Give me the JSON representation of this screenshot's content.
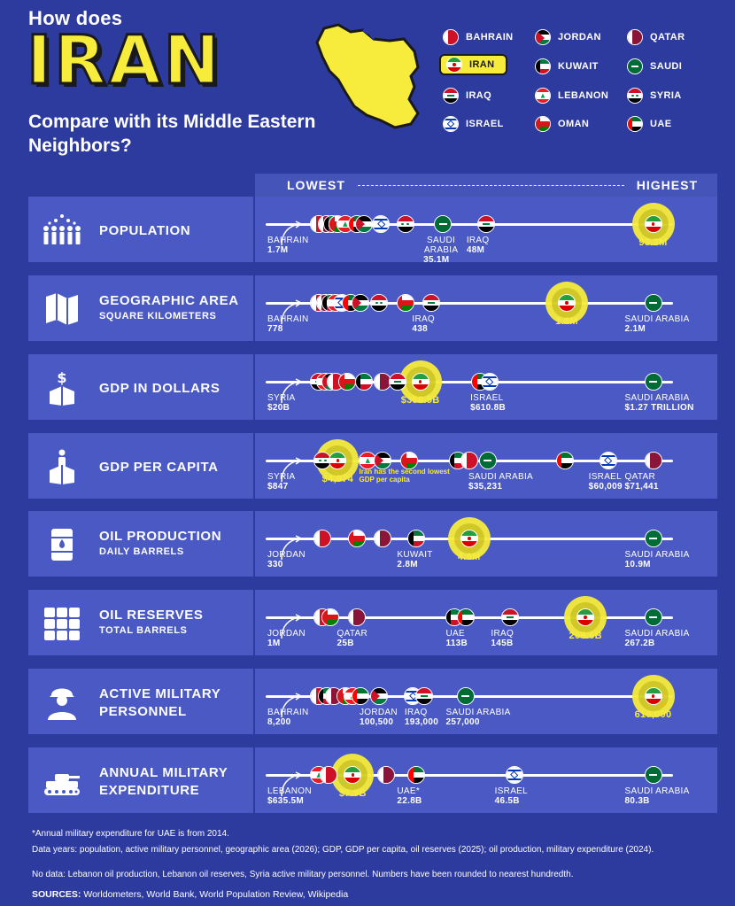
{
  "header": {
    "title_small": "How does",
    "title_big": "IRAN",
    "title_sub": "Compare with its Middle Eastern Neighbors?"
  },
  "legend": [
    {
      "name": "BAHRAIN",
      "flag": "bahrain"
    },
    {
      "name": "JORDAN",
      "flag": "jordan"
    },
    {
      "name": "QATAR",
      "flag": "qatar"
    },
    {
      "name": "IRAN",
      "flag": "iran",
      "highlight": true
    },
    {
      "name": "KUWAIT",
      "flag": "kuwait"
    },
    {
      "name": "SAUDI",
      "flag": "saudi"
    },
    {
      "name": "IRAQ",
      "flag": "iraq"
    },
    {
      "name": "LEBANON",
      "flag": "lebanon"
    },
    {
      "name": "SYRIA",
      "flag": "syria"
    },
    {
      "name": "ISRAEL",
      "flag": "israel"
    },
    {
      "name": "OMAN",
      "flag": "oman"
    },
    {
      "name": "UAE",
      "flag": "uae"
    }
  ],
  "scale": {
    "low": "LOWEST",
    "high": "HIGHEST"
  },
  "rows": [
    {
      "id": "population",
      "title": "POPULATION",
      "subtitle": "",
      "icon": "people-icon",
      "markers": [
        {
          "flag": "bahrain",
          "pos": 0.09
        },
        {
          "flag": "qatar",
          "pos": 0.11
        },
        {
          "flag": "kuwait",
          "pos": 0.125
        },
        {
          "flag": "oman",
          "pos": 0.14
        },
        {
          "flag": "lebanon",
          "pos": 0.16
        },
        {
          "flag": "uae",
          "pos": 0.19
        },
        {
          "flag": "jordan",
          "pos": 0.21
        },
        {
          "flag": "syria",
          "pos": 0.32
        },
        {
          "flag": "israel",
          "pos": 0.255
        },
        {
          "flag": "saudi",
          "pos": 0.42
        },
        {
          "flag": "iraq",
          "pos": 0.535
        },
        {
          "flag": "iran",
          "pos": 0.98,
          "iran": true
        }
      ],
      "labels": [
        {
          "name": "BAHRAIN",
          "value": "1.7M",
          "pos": 0.01
        },
        {
          "name": "SAUDI ARABIA",
          "value": "35.1M",
          "pos": 0.42,
          "two_line": true
        },
        {
          "name": "IRAQ",
          "value": "48M",
          "pos": 0.535
        },
        {
          "name": "",
          "value": "93.2M",
          "pos": 0.98,
          "iran": true
        }
      ]
    },
    {
      "id": "area",
      "title": "GEOGRAPHIC AREA",
      "subtitle": "SQUARE KILOMETERS",
      "icon": "map-icon",
      "markers": [
        {
          "flag": "bahrain",
          "pos": 0.09
        },
        {
          "flag": "qatar",
          "pos": 0.105
        },
        {
          "flag": "kuwait",
          "pos": 0.12
        },
        {
          "flag": "lebanon",
          "pos": 0.135
        },
        {
          "flag": "israel",
          "pos": 0.15
        },
        {
          "flag": "uae",
          "pos": 0.175
        },
        {
          "flag": "jordan",
          "pos": 0.2
        },
        {
          "flag": "syria",
          "pos": 0.25
        },
        {
          "flag": "oman",
          "pos": 0.32
        },
        {
          "flag": "iraq",
          "pos": 0.39
        },
        {
          "flag": "iran",
          "pos": 0.75,
          "iran": true
        },
        {
          "flag": "saudi",
          "pos": 0.98
        }
      ],
      "labels": [
        {
          "name": "BAHRAIN",
          "value": "778",
          "pos": 0.01
        },
        {
          "name": "IRAQ",
          "value": "438",
          "pos": 0.39
        },
        {
          "name": "",
          "value": "1.6M",
          "pos": 0.75,
          "iran": true
        },
        {
          "name": "SAUDI ARABIA",
          "value": "2.1M",
          "pos": 0.98
        }
      ]
    },
    {
      "id": "gdp",
      "title": "GDP IN DOLLARS",
      "subtitle": "",
      "icon": "money-box-icon",
      "markers": [
        {
          "flag": "syria",
          "pos": 0.09
        },
        {
          "flag": "lebanon",
          "pos": 0.105
        },
        {
          "flag": "jordan",
          "pos": 0.12
        },
        {
          "flag": "bahrain",
          "pos": 0.135
        },
        {
          "flag": "oman",
          "pos": 0.165
        },
        {
          "flag": "kuwait",
          "pos": 0.21
        },
        {
          "flag": "qatar",
          "pos": 0.26
        },
        {
          "flag": "iraq",
          "pos": 0.3
        },
        {
          "flag": "iran",
          "pos": 0.36,
          "iran": true
        },
        {
          "flag": "uae",
          "pos": 0.52
        },
        {
          "flag": "israel",
          "pos": 0.545
        },
        {
          "flag": "saudi",
          "pos": 0.98
        }
      ],
      "labels": [
        {
          "name": "SYRIA",
          "value": "$20B",
          "pos": 0.01
        },
        {
          "name": "",
          "value": "$356.5B",
          "pos": 0.36,
          "iran": true
        },
        {
          "name": "ISRAEL",
          "value": "$610.8B",
          "pos": 0.545
        },
        {
          "name": "SAUDI ARABIA",
          "value": "$1.27 TRILLION",
          "pos": 0.98
        }
      ]
    },
    {
      "id": "gdp_pc",
      "title": "GDP PER CAPITA",
      "subtitle": "",
      "icon": "person-box-icon",
      "markers": [
        {
          "flag": "syria",
          "pos": 0.1
        },
        {
          "flag": "iran",
          "pos": 0.14,
          "iran": true
        },
        {
          "flag": "lebanon",
          "pos": 0.22
        },
        {
          "flag": "jordan",
          "pos": 0.26
        },
        {
          "flag": "oman",
          "pos": 0.33
        },
        {
          "flag": "kuwait",
          "pos": 0.46
        },
        {
          "flag": "bahrain",
          "pos": 0.49
        },
        {
          "flag": "saudi",
          "pos": 0.54
        },
        {
          "flag": "uae",
          "pos": 0.745
        },
        {
          "flag": "israel",
          "pos": 0.86
        },
        {
          "flag": "qatar",
          "pos": 0.98
        }
      ],
      "labels": [
        {
          "name": "SYRIA",
          "value": "$847",
          "pos": 0.01
        },
        {
          "name": "",
          "value": "$4,074",
          "pos": 0.14,
          "iran": true
        },
        {
          "name": "SAUDI ARABIA",
          "value": "$35,231",
          "pos": 0.54
        },
        {
          "name": "ISRAEL",
          "value": "$60,009",
          "pos": 0.86
        },
        {
          "name": "QATAR",
          "value": "$71,441",
          "pos": 0.98
        }
      ],
      "note": "Iran has the second lowest GDP per capita"
    },
    {
      "id": "oil_prod",
      "title": "OIL PRODUCTION",
      "subtitle": "DAILY BARRELS",
      "icon": "barrel-icon",
      "markers": [
        {
          "flag": "bahrain",
          "pos": 0.1
        },
        {
          "flag": "oman",
          "pos": 0.19
        },
        {
          "flag": "qatar",
          "pos": 0.26
        },
        {
          "flag": "kuwait",
          "pos": 0.35
        },
        {
          "flag": "iran",
          "pos": 0.49,
          "iran": true
        },
        {
          "flag": "saudi",
          "pos": 0.98
        }
      ],
      "labels": [
        {
          "name": "JORDAN",
          "value": "330",
          "pos": 0.01
        },
        {
          "name": "KUWAIT",
          "value": "2.8M",
          "pos": 0.35
        },
        {
          "name": "",
          "value": "4.6M",
          "pos": 0.49,
          "iran": true
        },
        {
          "name": "SAUDI ARABIA",
          "value": "10.9M",
          "pos": 0.98
        }
      ]
    },
    {
      "id": "oil_res",
      "title": "OIL RESERVES",
      "subtitle": "TOTAL BARRELS",
      "icon": "barrels-icon",
      "markers": [
        {
          "flag": "bahrain",
          "pos": 0.1
        },
        {
          "flag": "oman",
          "pos": 0.12
        },
        {
          "flag": "qatar",
          "pos": 0.19
        },
        {
          "flag": "kuwait",
          "pos": 0.45
        },
        {
          "flag": "uae",
          "pos": 0.48
        },
        {
          "flag": "iraq",
          "pos": 0.6
        },
        {
          "flag": "iran",
          "pos": 0.8,
          "iran": true
        },
        {
          "flag": "saudi",
          "pos": 0.98
        }
      ],
      "labels": [
        {
          "name": "JORDAN",
          "value": "1M",
          "pos": 0.01
        },
        {
          "name": "QATAR",
          "value": "25B",
          "pos": 0.19
        },
        {
          "name": "UAE",
          "value": "113B",
          "pos": 0.48
        },
        {
          "name": "IRAQ",
          "value": "145B",
          "pos": 0.6
        },
        {
          "name": "",
          "value": "208.6B",
          "pos": 0.8,
          "iran": true
        },
        {
          "name": "SAUDI ARABIA",
          "value": "267.2B",
          "pos": 0.98
        }
      ]
    },
    {
      "id": "military",
      "title": "ACTIVE MILITARY",
      "subtitle": "PERSONNEL",
      "big_subtitle": true,
      "icon": "soldier-icon",
      "markers": [
        {
          "flag": "bahrain",
          "pos": 0.09
        },
        {
          "flag": "kuwait",
          "pos": 0.11
        },
        {
          "flag": "qatar",
          "pos": 0.13
        },
        {
          "flag": "oman",
          "pos": 0.16
        },
        {
          "flag": "lebanon",
          "pos": 0.18
        },
        {
          "flag": "uae",
          "pos": 0.2
        },
        {
          "flag": "jordan",
          "pos": 0.25
        },
        {
          "flag": "israel",
          "pos": 0.34
        },
        {
          "flag": "iraq",
          "pos": 0.37
        },
        {
          "flag": "saudi",
          "pos": 0.48
        },
        {
          "flag": "iran",
          "pos": 0.98,
          "iran": true
        }
      ],
      "labels": [
        {
          "name": "BAHRAIN",
          "value": "8,200",
          "pos": 0.01
        },
        {
          "name": "JORDAN",
          "value": "100,500",
          "pos": 0.25
        },
        {
          "name": "IRAQ",
          "value": "193,000",
          "pos": 0.37
        },
        {
          "name": "SAUDI ARABIA",
          "value": "257,000",
          "pos": 0.48
        },
        {
          "name": "",
          "value": "610,000",
          "pos": 0.98,
          "iran": true
        }
      ]
    },
    {
      "id": "expenditure",
      "title": "ANNUAL MILITARY",
      "subtitle": "EXPENDITURE",
      "big_subtitle": true,
      "icon": "tank-icon",
      "markers": [
        {
          "flag": "lebanon",
          "pos": 0.09
        },
        {
          "flag": "bahrain",
          "pos": 0.115
        },
        {
          "flag": "iran",
          "pos": 0.18,
          "iran": true
        },
        {
          "flag": "qatar",
          "pos": 0.27
        },
        {
          "flag": "uae",
          "pos": 0.35
        },
        {
          "flag": "israel",
          "pos": 0.61
        },
        {
          "flag": "saudi",
          "pos": 0.98
        }
      ],
      "labels": [
        {
          "name": "LEBANON",
          "value": "$635.5M",
          "pos": 0.01
        },
        {
          "name": "",
          "value": "$7.9B",
          "pos": 0.18,
          "iran": true
        },
        {
          "name": "UAE*",
          "value": "22.8B",
          "pos": 0.35
        },
        {
          "name": "ISRAEL",
          "value": "46.5B",
          "pos": 0.61
        },
        {
          "name": "SAUDI ARABIA",
          "value": "80.3B",
          "pos": 0.98
        }
      ]
    }
  ],
  "footer": {
    "note1": "*Annual military expenditure for UAE is from 2014.",
    "note2": "Data years: population, active military personnel, geographic area (2026); GDP, GDP per capita, oil reserves (2025); oil production, military expenditure (2024).",
    "note3": "No data: Lebanon oil production, Lebanon oil reserves, Syria active military personnel. Numbers have been rounded to nearest hundredth.",
    "sources_label": "SOURCES:",
    "sources": "Worldometers, World Bank, World Population Review, Wikipedia"
  },
  "colors": {
    "background": "#2d3a9e",
    "panel": "#4a59c3",
    "accent": "#f7ec3b"
  }
}
